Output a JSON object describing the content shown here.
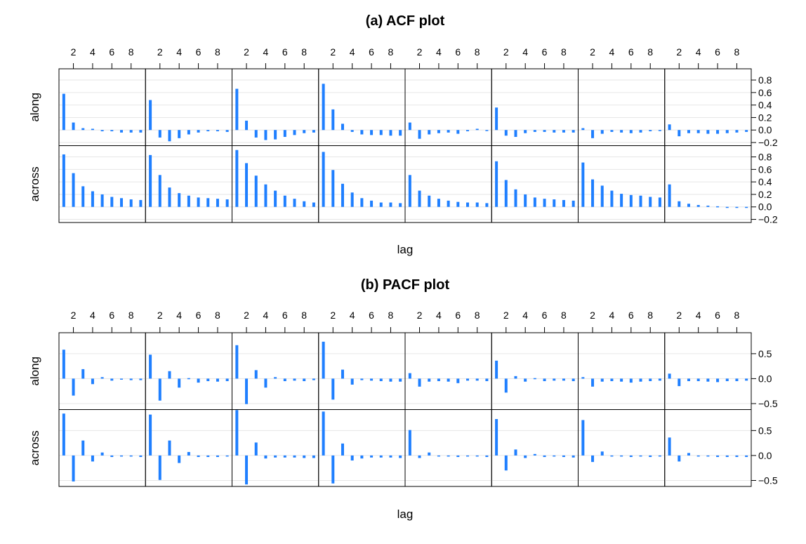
{
  "chart_data": [
    {
      "type": "bar",
      "title": "(a) ACF plot",
      "xlabel": "lag",
      "ylabel": "",
      "x_ticks": [
        2,
        4,
        6,
        8
      ],
      "y_ticks": [
        -0.2,
        0.0,
        0.2,
        0.4,
        0.6,
        0.8
      ],
      "y_tick_labels": [
        "−0.2",
        "0.0",
        "0.2",
        "0.4",
        "0.6",
        "0.8"
      ],
      "ylim": [
        -0.25,
        0.98
      ],
      "xlim": [
        0.5,
        9.5
      ],
      "lags": [
        1,
        2,
        3,
        4,
        5,
        6,
        7,
        8,
        9
      ],
      "grid": true,
      "rows": [
        {
          "name": "along",
          "panels": [
            [
              0.58,
              0.12,
              0.03,
              0.02,
              -0.02,
              -0.02,
              -0.04,
              -0.04,
              -0.04
            ],
            [
              0.48,
              -0.12,
              -0.18,
              -0.13,
              -0.07,
              -0.04,
              -0.02,
              -0.02,
              -0.03
            ],
            [
              0.66,
              0.15,
              -0.12,
              -0.16,
              -0.15,
              -0.11,
              -0.08,
              -0.05,
              -0.04
            ],
            [
              0.74,
              0.33,
              0.1,
              -0.03,
              -0.07,
              -0.08,
              -0.08,
              -0.09,
              -0.09
            ],
            [
              0.12,
              -0.14,
              -0.07,
              -0.05,
              -0.04,
              -0.06,
              -0.02,
              0.02,
              -0.01
            ],
            [
              0.36,
              -0.09,
              -0.11,
              -0.05,
              -0.03,
              -0.03,
              -0.04,
              -0.04,
              -0.04
            ],
            [
              0.03,
              -0.13,
              -0.06,
              -0.03,
              -0.04,
              -0.05,
              -0.04,
              -0.02,
              -0.01
            ],
            [
              0.09,
              -0.1,
              -0.05,
              -0.05,
              -0.06,
              -0.06,
              -0.05,
              -0.04,
              -0.03
            ]
          ]
        },
        {
          "name": "across",
          "panels": [
            [
              0.84,
              0.54,
              0.33,
              0.25,
              0.2,
              0.16,
              0.14,
              0.12,
              0.11
            ],
            [
              0.83,
              0.51,
              0.31,
              0.22,
              0.18,
              0.15,
              0.14,
              0.13,
              0.12
            ],
            [
              0.91,
              0.7,
              0.5,
              0.36,
              0.26,
              0.18,
              0.13,
              0.09,
              0.07
            ],
            [
              0.88,
              0.59,
              0.37,
              0.23,
              0.14,
              0.1,
              0.07,
              0.07,
              0.06
            ],
            [
              0.51,
              0.26,
              0.18,
              0.13,
              0.1,
              0.08,
              0.07,
              0.07,
              0.06
            ],
            [
              0.73,
              0.43,
              0.28,
              0.2,
              0.15,
              0.13,
              0.12,
              0.11,
              0.1
            ],
            [
              0.71,
              0.44,
              0.34,
              0.26,
              0.21,
              0.19,
              0.18,
              0.16,
              0.15
            ],
            [
              0.36,
              0.09,
              0.05,
              0.03,
              0.02,
              0.01,
              -0.01,
              -0.01,
              -0.01
            ]
          ]
        }
      ]
    },
    {
      "type": "bar",
      "title": "(b) PACF plot",
      "xlabel": "lag",
      "ylabel": "",
      "x_ticks": [
        2,
        4,
        6,
        8
      ],
      "y_ticks": [
        -0.5,
        0.0,
        0.5
      ],
      "y_tick_labels": [
        "−0.5",
        "0.0",
        "0.5"
      ],
      "ylim": [
        -0.62,
        0.92
      ],
      "xlim": [
        0.5,
        9.5
      ],
      "lags": [
        1,
        2,
        3,
        4,
        5,
        6,
        7,
        8,
        9
      ],
      "grid": true,
      "rows": [
        {
          "name": "along",
          "panels": [
            [
              0.58,
              -0.34,
              0.19,
              -0.11,
              0.03,
              -0.04,
              -0.02,
              -0.03,
              -0.03
            ],
            [
              0.48,
              -0.44,
              0.15,
              -0.18,
              0.01,
              -0.08,
              -0.05,
              -0.06,
              -0.05
            ],
            [
              0.67,
              -0.51,
              0.17,
              -0.18,
              0.03,
              -0.05,
              -0.04,
              -0.05,
              -0.03
            ],
            [
              0.74,
              -0.42,
              0.18,
              -0.12,
              -0.03,
              -0.04,
              -0.05,
              -0.06,
              -0.06
            ],
            [
              0.11,
              -0.16,
              -0.06,
              -0.05,
              -0.06,
              -0.09,
              -0.04,
              -0.04,
              -0.05
            ],
            [
              0.36,
              -0.28,
              0.05,
              -0.06,
              0.01,
              -0.05,
              -0.04,
              -0.04,
              -0.05
            ],
            [
              0.03,
              -0.16,
              -0.06,
              -0.05,
              -0.06,
              -0.08,
              -0.06,
              -0.05,
              -0.04
            ],
            [
              0.1,
              -0.15,
              -0.05,
              -0.05,
              -0.06,
              -0.07,
              -0.05,
              -0.05,
              -0.04
            ]
          ]
        },
        {
          "name": "across",
          "panels": [
            [
              0.84,
              -0.52,
              0.3,
              -0.12,
              0.06,
              -0.03,
              -0.02,
              -0.02,
              -0.03
            ],
            [
              0.82,
              -0.49,
              0.3,
              -0.15,
              0.07,
              -0.03,
              -0.03,
              -0.03,
              -0.02
            ],
            [
              0.91,
              -0.58,
              0.26,
              -0.06,
              -0.04,
              -0.04,
              -0.04,
              -0.05,
              -0.05
            ],
            [
              0.88,
              -0.56,
              0.24,
              -0.1,
              -0.06,
              -0.04,
              -0.04,
              -0.04,
              -0.05
            ],
            [
              0.51,
              -0.05,
              0.06,
              -0.02,
              -0.02,
              -0.03,
              -0.02,
              -0.02,
              -0.03
            ],
            [
              0.73,
              -0.3,
              0.12,
              -0.05,
              0.03,
              -0.03,
              -0.02,
              -0.03,
              -0.04
            ],
            [
              0.71,
              -0.13,
              0.08,
              -0.02,
              -0.02,
              -0.03,
              -0.02,
              -0.03,
              -0.02
            ],
            [
              0.36,
              -0.12,
              0.05,
              -0.02,
              -0.02,
              -0.03,
              -0.03,
              -0.03,
              -0.03
            ]
          ]
        }
      ]
    }
  ],
  "colors": {
    "bar": "#1f7fff",
    "grid": "#e6e6e6",
    "frame": "#000000"
  }
}
